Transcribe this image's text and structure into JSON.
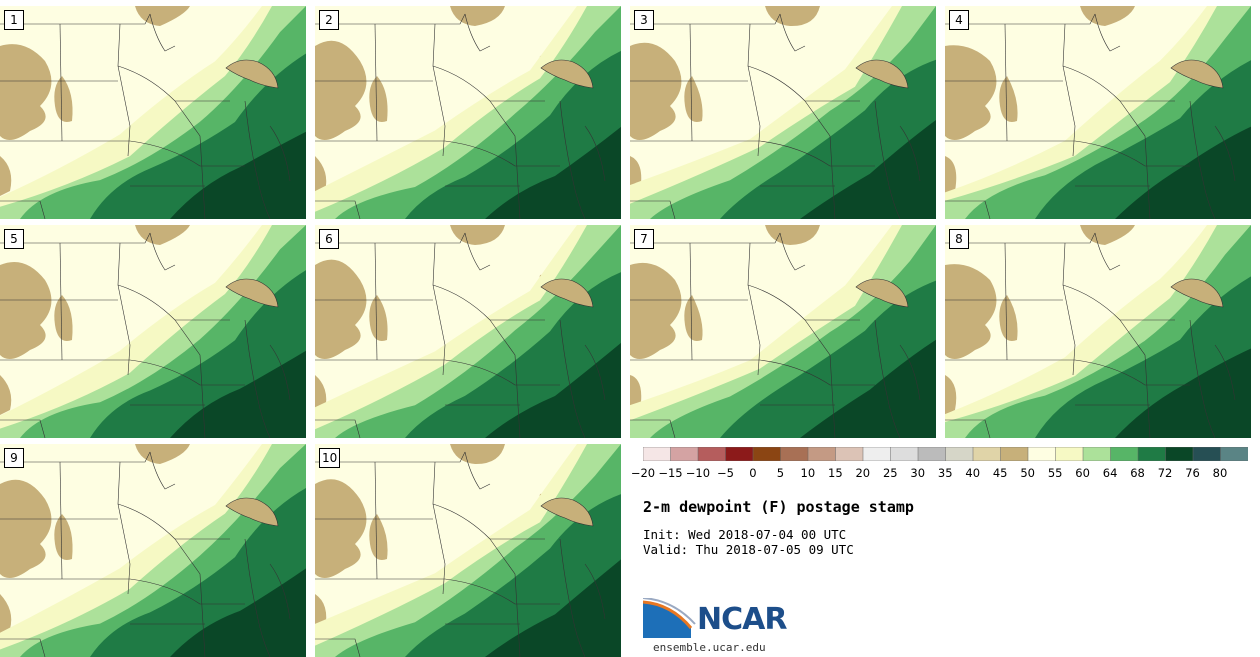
{
  "stamps": [
    {
      "label": "1"
    },
    {
      "label": "2"
    },
    {
      "label": "3"
    },
    {
      "label": "4"
    },
    {
      "label": "5"
    },
    {
      "label": "6"
    },
    {
      "label": "7"
    },
    {
      "label": "8"
    },
    {
      "label": "9"
    },
    {
      "label": "10"
    }
  ],
  "colorbar": {
    "ticks": [
      "−20",
      "−15",
      "−10",
      "−5",
      "0",
      "5",
      "10",
      "15",
      "20",
      "25",
      "30",
      "35",
      "40",
      "45",
      "50",
      "55",
      "60",
      "64",
      "68",
      "72",
      "76",
      "80"
    ],
    "colors": [
      "#f5e6e6",
      "#d4a3a3",
      "#b55d5d",
      "#8c1a1a",
      "#8b4513",
      "#a87055",
      "#c49a84",
      "#dcc3b6",
      "#eeeeee",
      "#dddddd",
      "#bbbbbb",
      "#d6d6c8",
      "#e0d4a8",
      "#c7b07a",
      "#fefee2",
      "#f6f9c4",
      "#ace19a",
      "#57b567",
      "#1f7b45",
      "#0a4727",
      "#264f54",
      "#5a8485"
    ]
  },
  "map_fill": {
    "dry": "#c7b07a",
    "c50": "#fefee2",
    "c55": "#f6f9c4",
    "c60": "#ace19a",
    "c64": "#57b567",
    "c68": "#1f7b45",
    "c72": "#0a4727",
    "boundary": "#333333"
  },
  "title": "2-m dewpoint (F) postage stamp",
  "init": "Init: Wed 2018-07-04 00 UTC",
  "valid": "Valid: Thu 2018-07-05 09 UTC",
  "logo": {
    "text": "NCAR",
    "site": "ensemble.ucar.edu"
  }
}
